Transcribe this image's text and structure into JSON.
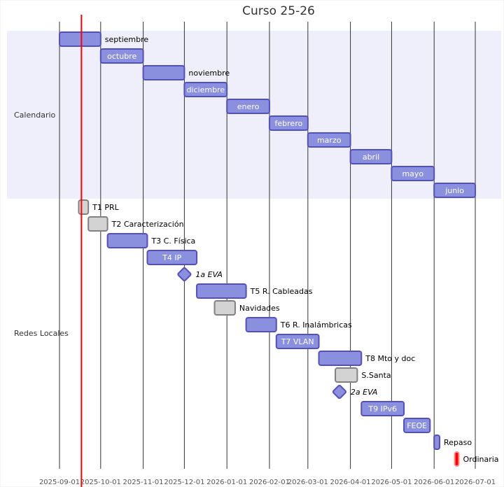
{
  "chart_data": {
    "type": "gantt",
    "title": "Curso 25-26",
    "today": "2025-09-17",
    "xlim": [
      "2025-09-01",
      "2026-07-01"
    ],
    "x_ticks": [
      "2025-09-01",
      "2025-10-01",
      "2025-11-01",
      "2025-12-01",
      "2026-01-01",
      "2026-02-01",
      "2026-03-01",
      "2026-04-01",
      "2026-05-01",
      "2026-06-01",
      "2026-07-01"
    ],
    "grid": true,
    "colors": {
      "active_fill": "#8a90dd",
      "active_stroke": "#534fbc",
      "done_fill": "#d3d3d3",
      "done_stroke": "#808080",
      "crit_fill": "#ff0000",
      "crit_stroke": "#ff8888",
      "today_line": "#ff0000",
      "section_band": "#efeffc"
    },
    "sections": [
      {
        "name": "Calendario",
        "tasks": [
          {
            "label": "septiembre",
            "start": "2025-09-01",
            "end": "2025-10-01",
            "status": "active"
          },
          {
            "label": "octubre",
            "start": "2025-10-01",
            "end": "2025-11-01",
            "status": "active"
          },
          {
            "label": "noviembre",
            "start": "2025-11-01",
            "end": "2025-12-01",
            "status": "active"
          },
          {
            "label": "diciembre",
            "start": "2025-12-01",
            "end": "2026-01-01",
            "status": "active"
          },
          {
            "label": "enero",
            "start": "2026-01-01",
            "end": "2026-02-01",
            "status": "active"
          },
          {
            "label": "febrero",
            "start": "2026-02-01",
            "end": "2026-03-01",
            "status": "active"
          },
          {
            "label": "marzo",
            "start": "2026-03-01",
            "end": "2026-04-01",
            "status": "active"
          },
          {
            "label": "abril",
            "start": "2026-04-01",
            "end": "2026-05-01",
            "status": "active"
          },
          {
            "label": "mayo",
            "start": "2026-05-01",
            "end": "2026-06-01",
            "status": "active"
          },
          {
            "label": "junio",
            "start": "2026-06-01",
            "end": "2026-07-01",
            "status": "active"
          }
        ]
      },
      {
        "name": "Redes Locales",
        "tasks": [
          {
            "label": "T1 PRL",
            "start": "2025-09-15",
            "end": "2025-09-22",
            "status": "done"
          },
          {
            "label": "T2 Caracterización",
            "start": "2025-09-22",
            "end": "2025-10-06",
            "status": "done"
          },
          {
            "label": "T3 C. Física",
            "start": "2025-10-06",
            "end": "2025-11-04",
            "status": "active"
          },
          {
            "label": "T4 IP",
            "start": "2025-11-04",
            "end": "2025-12-10",
            "status": "active"
          },
          {
            "label": "1a EVA",
            "start": "2025-12-01",
            "end": "2025-12-01",
            "status": "milestone"
          },
          {
            "label": "T5 R. Cableadas",
            "start": "2025-12-10",
            "end": "2026-01-15",
            "status": "active"
          },
          {
            "label": "Navidades",
            "start": "2025-12-23",
            "end": "2026-01-07",
            "status": "done"
          },
          {
            "label": "T6 R. Inalámbricas",
            "start": "2026-01-15",
            "end": "2026-02-06",
            "status": "active"
          },
          {
            "label": "T7 VLAN",
            "start": "2026-02-06",
            "end": "2026-03-09",
            "status": "active"
          },
          {
            "label": "T8 Mto y doc",
            "start": "2026-03-09",
            "end": "2026-04-09",
            "status": "active"
          },
          {
            "label": "S.Santa",
            "start": "2026-03-21",
            "end": "2026-04-06",
            "status": "done"
          },
          {
            "label": "2a EVA",
            "start": "2026-03-24",
            "end": "2026-03-24",
            "status": "milestone"
          },
          {
            "label": "T9 IPv6",
            "start": "2026-04-09",
            "end": "2026-05-10",
            "status": "active"
          },
          {
            "label": "FEOE",
            "start": "2026-05-10",
            "end": "2026-05-29",
            "status": "active"
          },
          {
            "label": "Repaso",
            "start": "2026-06-01",
            "end": "2026-06-05",
            "status": "active"
          },
          {
            "label": "Ordinaria",
            "start": "2026-06-16",
            "end": "2026-06-19",
            "status": "crit"
          }
        ]
      }
    ]
  }
}
